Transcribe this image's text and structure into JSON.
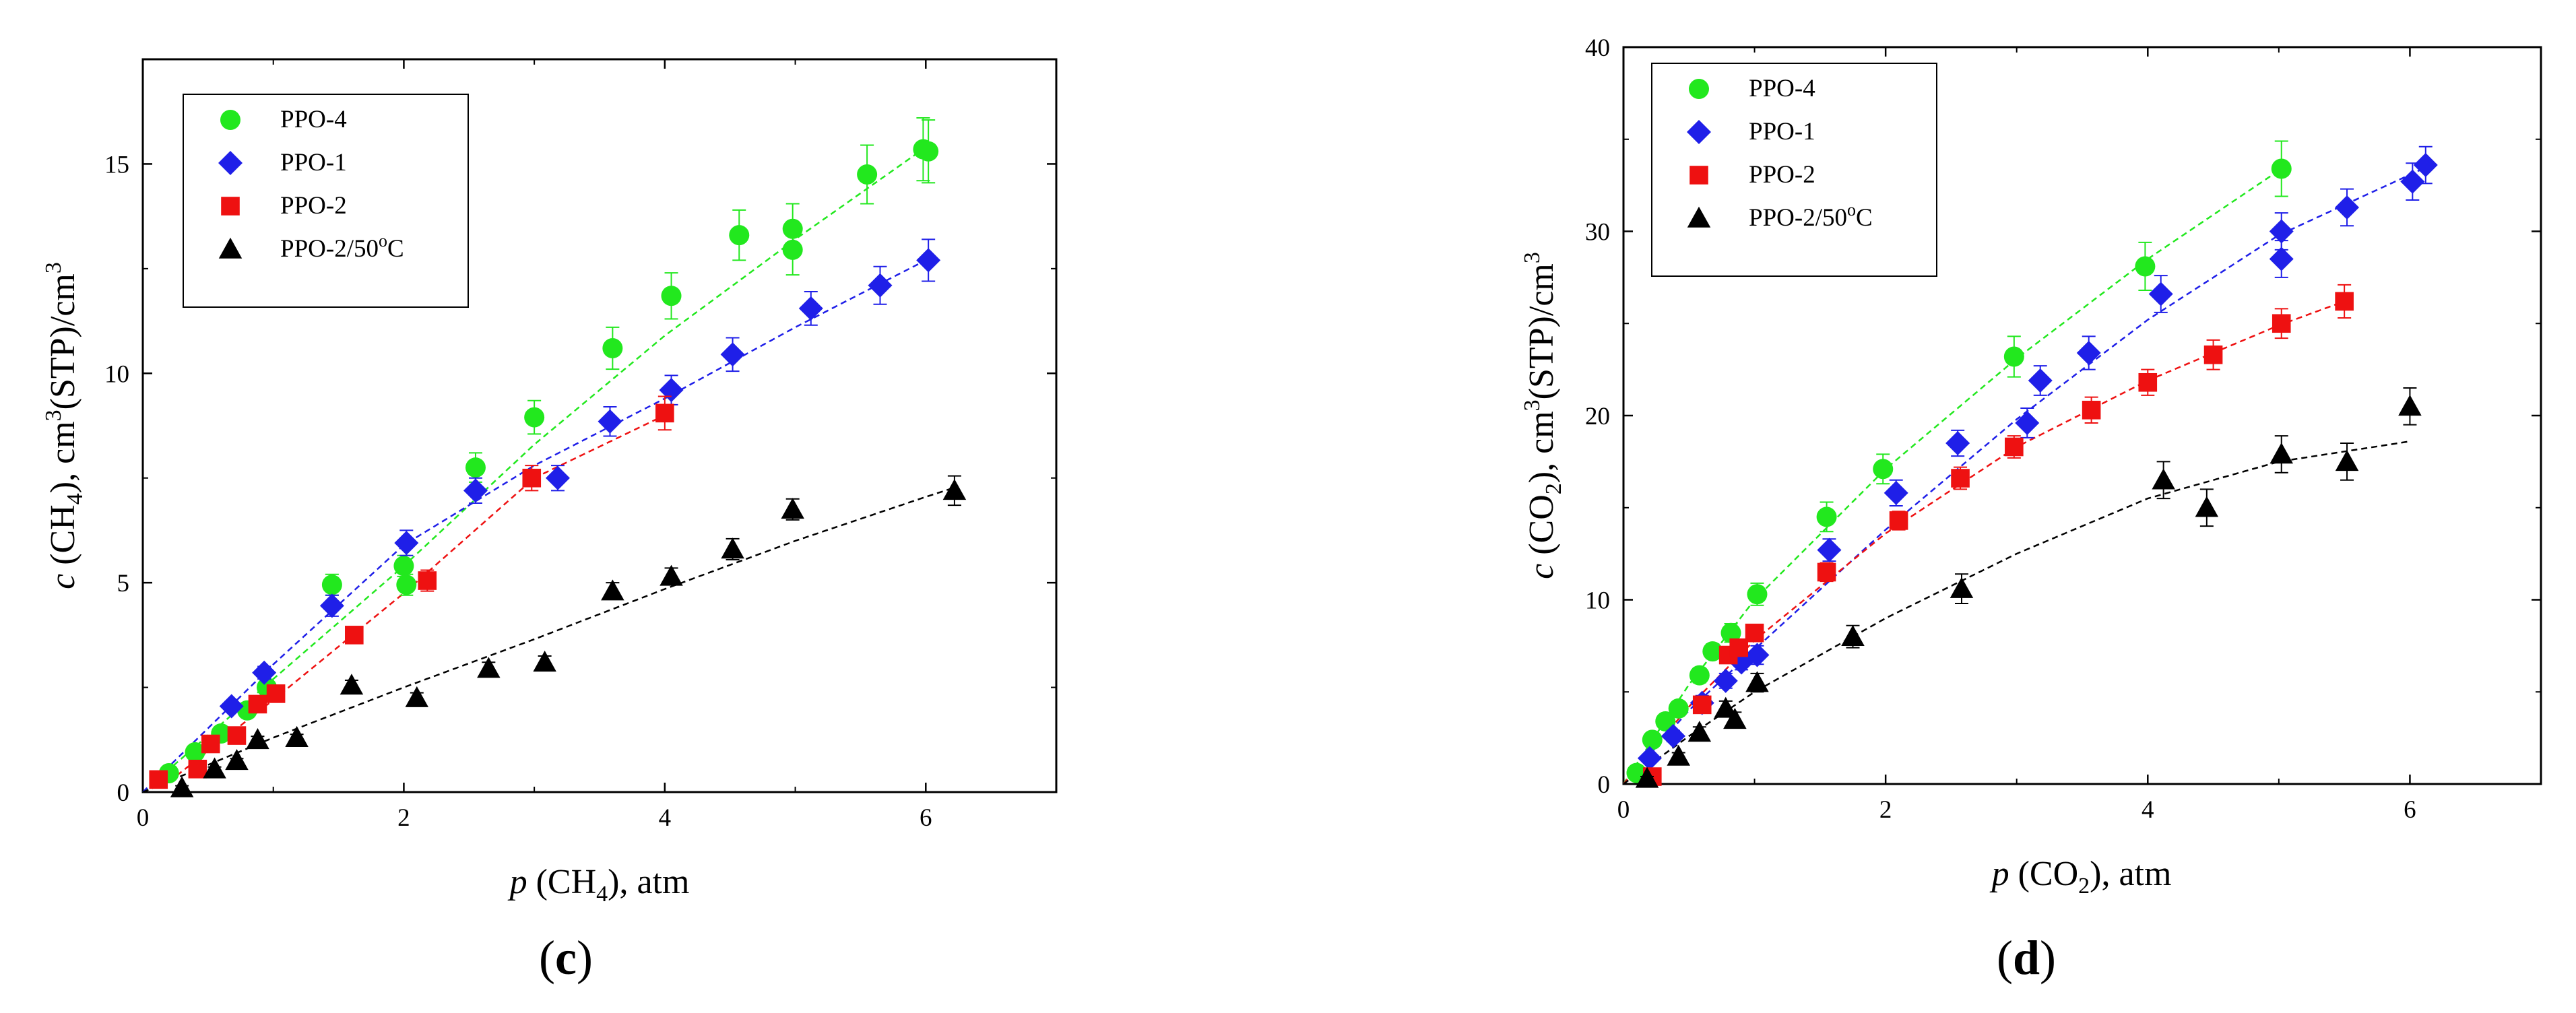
{
  "colors": {
    "PPO-4": "#22e81e",
    "PPO-1": "#1f1fe8",
    "PPO-2": "#ee1111",
    "PPO-2/50C": "#000000"
  },
  "chart_data": [
    {
      "type": "scatter",
      "panel_label": {
        "open": "(",
        "letter": "c",
        "close": ")"
      },
      "xlabel": {
        "var": "p",
        "species_pre": " (CH",
        "sub": "4",
        "post": "), atm"
      },
      "ylabel": {
        "var": "c",
        "species_pre": " (CH",
        "sub": "4",
        "mid": "), cm",
        "sup1": "3",
        "mid2": "(STP)/cm",
        "sup2": "3"
      },
      "xlim": [
        0,
        7
      ],
      "ylim": [
        0,
        17.5
      ],
      "xticks": [
        0,
        2,
        4,
        6
      ],
      "yticks": [
        0,
        5,
        10,
        15
      ],
      "legend_position": "top-left",
      "series": [
        {
          "name": "PPO-4",
          "label": "PPO-4",
          "marker": "circle",
          "color_key": "PPO-4",
          "x": [
            0.2,
            0.4,
            0.6,
            0.8,
            0.95,
            1.45,
            2.0,
            2.02,
            2.55,
            3.0,
            3.6,
            4.05,
            4.57,
            4.98,
            4.98,
            5.55,
            5.98,
            6.02
          ],
          "y": [
            0.45,
            0.95,
            1.4,
            1.95,
            2.5,
            4.95,
            5.4,
            4.95,
            7.75,
            8.95,
            10.6,
            11.85,
            13.3,
            12.95,
            13.45,
            14.75,
            15.35,
            15.3
          ],
          "err": [
            0.08,
            0.1,
            0.12,
            0.15,
            0.18,
            0.25,
            0.25,
            0.25,
            0.35,
            0.4,
            0.5,
            0.55,
            0.6,
            0.6,
            0.6,
            0.7,
            0.75,
            0.75
          ],
          "fit_x": [
            0,
            1,
            2,
            3,
            4,
            5,
            6
          ],
          "fit_y": [
            0,
            2.7,
            5.4,
            8.3,
            10.9,
            13.2,
            15.4
          ]
        },
        {
          "name": "PPO-1",
          "label": "PPO-1",
          "marker": "diamond",
          "color_key": "PPO-1",
          "x": [
            0.68,
            0.93,
            1.45,
            2.02,
            2.55,
            3.18,
            3.58,
            4.05,
            4.52,
            5.12,
            5.65,
            6.02
          ],
          "y": [
            2.05,
            2.85,
            4.45,
            5.95,
            7.2,
            7.5,
            8.85,
            9.6,
            10.45,
            11.55,
            12.1,
            12.7
          ],
          "err": [
            0.12,
            0.15,
            0.25,
            0.3,
            0.3,
            0.3,
            0.35,
            0.35,
            0.4,
            0.4,
            0.45,
            0.5
          ],
          "fit_x": [
            0,
            1,
            2,
            3,
            4,
            5,
            6
          ],
          "fit_y": [
            0,
            3.05,
            5.9,
            7.8,
            9.4,
            11.1,
            12.7
          ]
        },
        {
          "name": "PPO-2",
          "label": "PPO-2",
          "marker": "square",
          "color_key": "PPO-2",
          "x": [
            0.12,
            0.42,
            0.52,
            0.72,
            0.88,
            1.02,
            1.62,
            2.18,
            2.98,
            4.0
          ],
          "y": [
            0.3,
            0.55,
            1.15,
            1.35,
            2.1,
            2.35,
            3.75,
            5.05,
            7.5,
            9.05
          ],
          "err": [
            0.05,
            0.08,
            0.1,
            0.1,
            0.15,
            0.15,
            0.2,
            0.25,
            0.3,
            0.4
          ],
          "fit_x": [
            0.2,
            1,
            2,
            3,
            4
          ],
          "fit_y": [
            0.25,
            2.2,
            4.75,
            7.5,
            9.0
          ]
        },
        {
          "name": "PPO-2/50C",
          "label": "PPO-2/50",
          "label_sup": "o",
          "label_post": "C",
          "marker": "triangle",
          "color_key": "PPO-2/50C",
          "x": [
            0.3,
            0.55,
            0.72,
            0.88,
            1.18,
            1.6,
            2.1,
            2.65,
            3.08,
            3.6,
            4.05,
            4.52,
            4.98,
            6.22
          ],
          "y": [
            0.1,
            0.55,
            0.75,
            1.25,
            1.3,
            2.55,
            2.25,
            2.95,
            3.1,
            4.8,
            5.15,
            5.8,
            6.75,
            7.2
          ],
          "err": [
            0.05,
            0.05,
            0.05,
            0.08,
            0.08,
            0.12,
            0.12,
            0.15,
            0.15,
            0.2,
            0.2,
            0.25,
            0.25,
            0.35
          ],
          "fit_x": [
            0,
            1,
            2,
            3,
            4,
            5,
            6,
            6.25
          ],
          "fit_y": [
            0,
            1.3,
            2.5,
            3.65,
            4.85,
            6.0,
            7.05,
            7.3
          ]
        }
      ]
    },
    {
      "type": "scatter",
      "panel_label": {
        "open": "(",
        "letter": "d",
        "close": ")"
      },
      "xlabel": {
        "var": "p",
        "species_pre": " (CO",
        "sub": "2",
        "post": "), atm"
      },
      "ylabel": {
        "var": "c",
        "species_pre": " (CO",
        "sub": "2",
        "mid": "), cm",
        "sup1": "3",
        "mid2": "(STP)/cm",
        "sup2": "3"
      },
      "xlim": [
        0,
        7
      ],
      "ylim": [
        0,
        40
      ],
      "xticks": [
        0,
        2,
        4,
        6
      ],
      "yticks": [
        0,
        10,
        20,
        30,
        40
      ],
      "legend_position": "top-left",
      "series": [
        {
          "name": "PPO-4",
          "label": "PPO-4",
          "marker": "circle",
          "color_key": "PPO-4",
          "x": [
            0.1,
            0.22,
            0.32,
            0.42,
            0.58,
            0.68,
            0.82,
            1.02,
            1.55,
            1.98,
            2.98,
            3.98,
            5.02
          ],
          "y": [
            0.6,
            2.4,
            3.4,
            4.1,
            5.9,
            7.2,
            8.2,
            10.3,
            14.5,
            17.1,
            23.2,
            28.1,
            33.4
          ],
          "err": [
            0.1,
            0.2,
            0.3,
            0.3,
            0.4,
            0.4,
            0.5,
            0.6,
            0.8,
            0.8,
            1.1,
            1.3,
            1.5
          ],
          "fit_x": [
            0,
            0.5,
            1,
            2,
            3,
            4,
            5
          ],
          "fit_y": [
            0,
            5.4,
            10.0,
            17.1,
            23.1,
            28.5,
            33.3
          ]
        },
        {
          "name": "PPO-1",
          "label": "PPO-1",
          "marker": "diamond",
          "color_key": "PPO-1",
          "x": [
            0.2,
            0.38,
            0.6,
            0.78,
            0.9,
            1.02,
            1.57,
            2.08,
            2.55,
            3.08,
            3.18,
            3.55,
            4.1,
            5.02,
            5.02,
            5.52,
            6.02,
            6.12
          ],
          "y": [
            1.4,
            2.6,
            4.4,
            5.6,
            6.6,
            7.0,
            12.7,
            15.8,
            18.5,
            19.6,
            21.9,
            23.4,
            26.6,
            28.5,
            30.0,
            31.3,
            32.7,
            33.6
          ],
          "err": [
            0.2,
            0.3,
            0.4,
            0.4,
            0.4,
            0.5,
            0.6,
            0.7,
            0.7,
            0.8,
            0.8,
            0.9,
            1.0,
            1.0,
            1.0,
            1.0,
            1.0,
            1.0
          ],
          "fit_x": [
            0,
            0.5,
            1,
            2,
            3,
            4,
            5,
            6.1
          ],
          "fit_y": [
            0,
            4.0,
            7.3,
            13.8,
            19.8,
            25.2,
            29.8,
            33.4
          ]
        },
        {
          "name": "PPO-2",
          "label": "PPO-2",
          "marker": "square",
          "color_key": "PPO-2",
          "x": [
            0.22,
            0.6,
            0.8,
            0.88,
            1.0,
            1.55,
            2.1,
            2.57,
            2.98,
            3.57,
            4.0,
            4.5,
            5.02,
            5.5
          ],
          "y": [
            0.4,
            4.3,
            7.0,
            7.4,
            8.2,
            11.5,
            14.3,
            16.6,
            18.3,
            20.3,
            21.8,
            23.3,
            25.0,
            26.2
          ],
          "err": [
            0.1,
            0.3,
            0.3,
            0.4,
            0.4,
            0.5,
            0.5,
            0.6,
            0.6,
            0.7,
            0.7,
            0.8,
            0.8,
            0.9
          ],
          "fit_x": [
            0,
            0.5,
            1,
            2,
            3,
            4,
            5,
            5.5
          ],
          "fit_y": [
            0,
            4.2,
            7.8,
            13.6,
            18.3,
            21.9,
            24.9,
            26.2
          ]
        },
        {
          "name": "PPO-2/50C",
          "label": "PPO-2/50",
          "label_sup": "o",
          "label_post": "C",
          "marker": "triangle",
          "color_key": "PPO-2/50C",
          "x": [
            0.18,
            0.42,
            0.58,
            0.78,
            0.85,
            1.02,
            1.75,
            2.58,
            4.12,
            4.45,
            5.02,
            5.52,
            6.0
          ],
          "y": [
            0.3,
            1.5,
            2.8,
            4.1,
            3.5,
            5.5,
            8.0,
            10.6,
            16.5,
            15.0,
            17.9,
            17.5,
            20.5
          ],
          "err": [
            0.1,
            0.2,
            0.3,
            0.4,
            0.4,
            0.5,
            0.6,
            0.8,
            1.0,
            1.0,
            1.0,
            1.0,
            1.0
          ],
          "fit_x": [
            0,
            0.5,
            1,
            2,
            3,
            4,
            5,
            6
          ],
          "fit_y": [
            0,
            2.6,
            5.0,
            9.0,
            12.5,
            15.5,
            17.5,
            18.6
          ]
        }
      ]
    }
  ]
}
